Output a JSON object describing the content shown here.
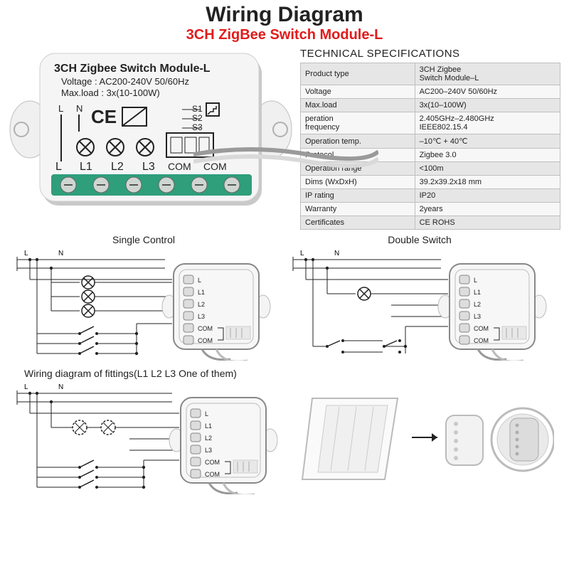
{
  "header": {
    "title": "Wiring Diagram",
    "title_color": "#000000",
    "title_fontsize": 30,
    "subtitle": "3CH ZigBee Switch Module-L",
    "subtitle_color": "#e11b1b",
    "subtitle_fontsize": 20
  },
  "module_label": {
    "line1": "3CH Zigbee Switch Module-L",
    "line2": "Voltage : AC200-240V 50/60Hz",
    "line3": "Max.load : 3x(10-100W)",
    "terminals": [
      "L",
      "L1",
      "L2",
      "L3",
      "COM",
      "COM"
    ],
    "s_labels": [
      "S1",
      "S2",
      "S3"
    ],
    "ln": [
      "L",
      "N"
    ],
    "terminal_block_color": "#2f9e7a",
    "body_color": "#f5f5f5",
    "shadow_color": "#c9c9c9",
    "text_color": "#222222"
  },
  "specs": {
    "title": "TECHNICAL SPECIFICATIONS",
    "rows": [
      [
        "Product type",
        "3CH Zigbee\nSwitch Module–L"
      ],
      [
        "Voltage",
        "AC200–240V 50/60Hz"
      ],
      [
        "Max.load",
        "3x(10–100W)"
      ],
      [
        "peration\nfrequency",
        "2.405GHz–2.480GHz\nIEEE802.15.4"
      ],
      [
        "Operation temp.",
        "–10℃ + 40℃"
      ],
      [
        "Protocol",
        "Zigbee  3.0"
      ],
      [
        "Operation range",
        "<100m"
      ],
      [
        "Dims (WxDxH)",
        "39.2x39.2x18 mm"
      ],
      [
        "IP rating",
        "IP20"
      ],
      [
        "Warranty",
        "2years"
      ],
      [
        "Certificates",
        "CE ROHS"
      ]
    ],
    "row_bg_odd": "#e6e6e6",
    "row_bg_even": "#f7f7f7",
    "border_color": "#bfbfbf"
  },
  "diagram_titles": {
    "single": "Single Control",
    "double": "Double Switch",
    "fittings": "Wiring diagram of fittings(L1 L2 L3 One of them)"
  },
  "module_terminal_labels": [
    "L",
    "L1",
    "L2",
    "L3",
    "COM",
    "COM"
  ],
  "ln_small": [
    "L",
    "N"
  ],
  "colors": {
    "wire": "#d9d9d9",
    "wire_stroke": "#9a9a9a",
    "line": "#222222",
    "module_outline": "#333333",
    "terminal_fill": "#dddddd"
  }
}
